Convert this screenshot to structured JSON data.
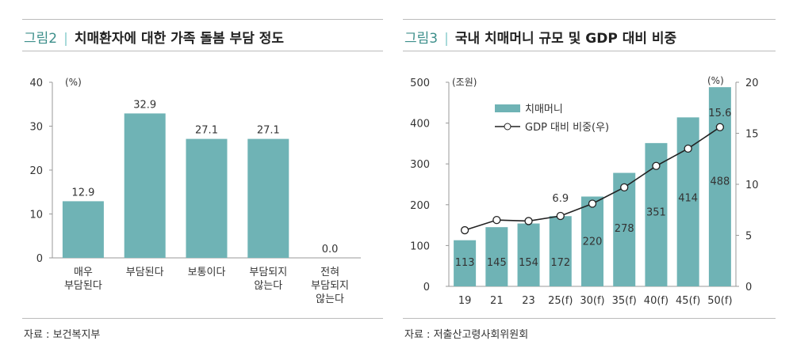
{
  "left": {
    "fig_num": "그림2",
    "title": "치매환자에 대한 가족 돌봄 부담 정도",
    "source": "자료 : 보건복지부"
  },
  "right": {
    "fig_num": "그림3",
    "title": "국내 치매머니 규모 및 GDP 대비 비중",
    "source": "자료 : 저출산고령사회위원회"
  },
  "colors": {
    "bar": "#6fb3b5",
    "line": "#222222",
    "accent": "#3d8f8b"
  },
  "chart_data": [
    {
      "type": "bar",
      "categories": [
        [
          "매우",
          "부담된다"
        ],
        [
          "부담된다"
        ],
        [
          "보통이다"
        ],
        [
          "부담되지",
          "않는다"
        ],
        [
          "전혀",
          "부담되지",
          "않는다"
        ]
      ],
      "values": [
        12.9,
        32.9,
        27.1,
        27.1,
        0.0
      ],
      "data_labels": [
        "12.9",
        "32.9",
        "27.1",
        "27.1",
        "0.0"
      ],
      "ylabel": "(%)",
      "ylim": [
        0,
        40
      ],
      "yticks": [
        0,
        10,
        20,
        30,
        40
      ]
    },
    {
      "type": "bar+line",
      "categories": [
        "19",
        "21",
        "23",
        "25(f)",
        "30(f)",
        "35(f)",
        "40(f)",
        "45(f)",
        "50(f)"
      ],
      "series": [
        {
          "name": "치매머니",
          "type": "bar",
          "axis": "left",
          "values": [
            113,
            145,
            154,
            172,
            220,
            278,
            351,
            414,
            488
          ]
        },
        {
          "name": "GDP  대비 비중(우)",
          "type": "line",
          "axis": "right",
          "values": [
            5.5,
            6.5,
            6.4,
            6.9,
            8.1,
            9.7,
            11.8,
            13.5,
            15.6
          ]
        }
      ],
      "line_labels": [
        {
          "index": 3,
          "text": "6.9"
        },
        {
          "index": 8,
          "text": "15.6"
        }
      ],
      "ylabel_left": "(조원)",
      "ylabel_right": "(%)",
      "ylim_left": [
        0,
        500
      ],
      "yticks_left": [
        0,
        100,
        200,
        300,
        400,
        500
      ],
      "ylim_right": [
        0,
        20
      ],
      "yticks_right": [
        0,
        5,
        10,
        15,
        20
      ],
      "legend": "top-left"
    }
  ]
}
